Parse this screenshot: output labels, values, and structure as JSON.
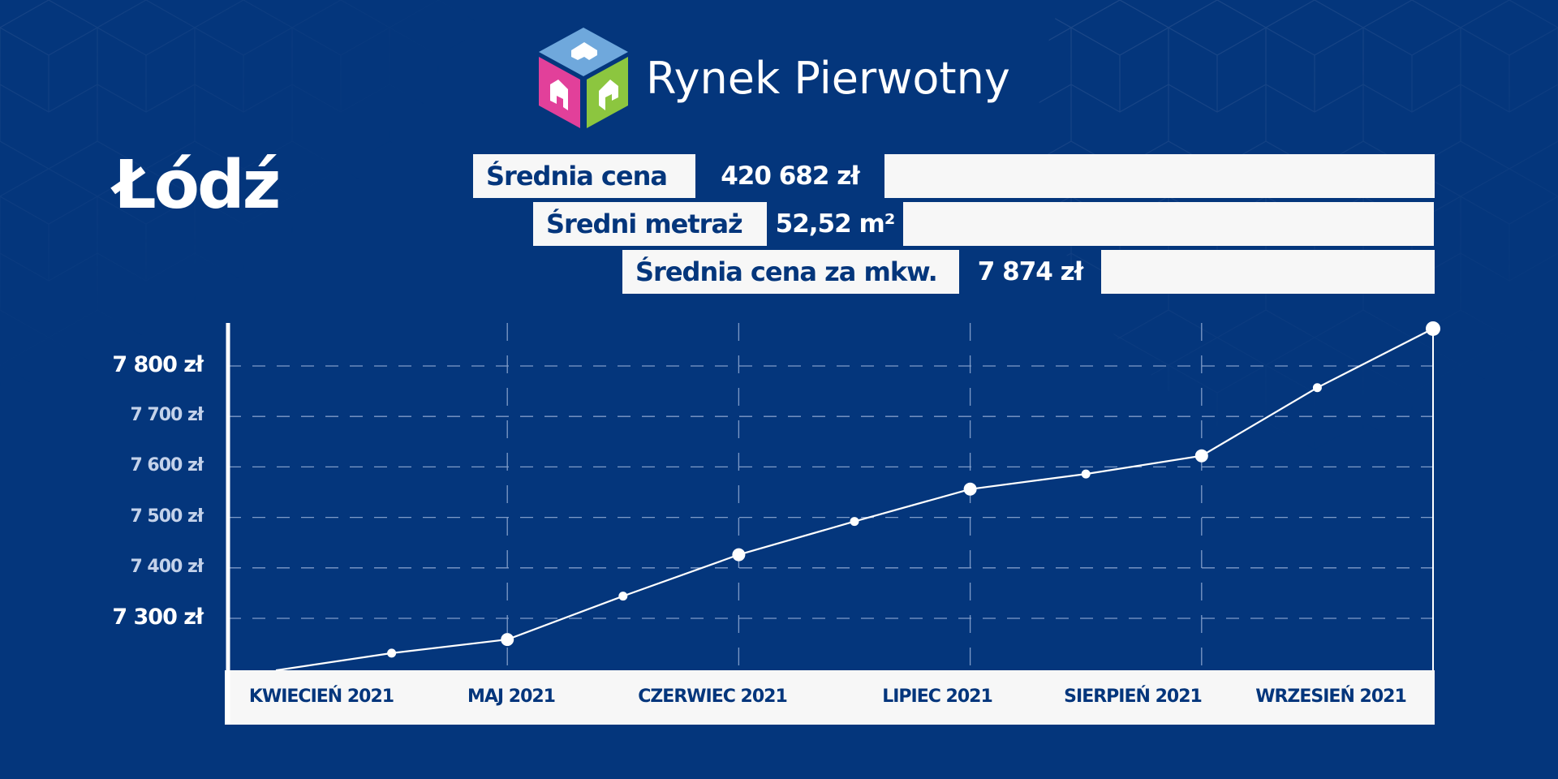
{
  "brand": {
    "name": "Rynek Pierwotny",
    "logo_icon": "house-cube-icon",
    "logo_colors": {
      "top": "#6fa8dc",
      "left": "#e2409a",
      "right": "#8cc63f"
    }
  },
  "city": "Łódź",
  "stats": [
    {
      "label": "Średnia cena",
      "value": "420 682 zł"
    },
    {
      "label": "Średni metraż",
      "value": "52,52 m²"
    },
    {
      "label": "Średnia cena za mkw.",
      "value": "7 874 zł"
    }
  ],
  "colors": {
    "background": "#04367c",
    "panel": "#f7f7f7",
    "text_dark": "#04367c",
    "line": "#ffffff",
    "grid": "#7f9bc8"
  },
  "chart_data": {
    "type": "line",
    "title": "Średnia cena za mkw. — Łódź",
    "xlabel": "",
    "ylabel": "",
    "ylim": [
      7190,
      7880
    ],
    "grid": {
      "horizontal": true,
      "vertical": true,
      "style": "dashed"
    },
    "yticks": [
      {
        "value": 7800,
        "label": "7 800 zł",
        "major": true
      },
      {
        "value": 7700,
        "label": "7 700 zł",
        "major": false
      },
      {
        "value": 7600,
        "label": "7 600 zł",
        "major": false
      },
      {
        "value": 7500,
        "label": "7 500 zł",
        "major": false
      },
      {
        "value": 7400,
        "label": "7 400 zł",
        "major": false
      },
      {
        "value": 7300,
        "label": "7 300 zł",
        "major": true
      }
    ],
    "categories": [
      "KWIECIEŃ 2021",
      "MAJ 2021",
      "CZERWIEC 2021",
      "LIPIEC 2021",
      "SIERPIEŃ 2021",
      "WRZESIEŃ 2021"
    ],
    "series": [
      {
        "name": "Średnia cena za mkw.",
        "points": [
          {
            "t": 0.0,
            "value": 7197,
            "marker": "none"
          },
          {
            "t": 0.5,
            "value": 7231,
            "marker": "small"
          },
          {
            "t": 1.0,
            "value": 7258,
            "marker": "large",
            "label": "MAJ 2021"
          },
          {
            "t": 1.5,
            "value": 7344,
            "marker": "small"
          },
          {
            "t": 2.0,
            "value": 7426,
            "marker": "large",
            "label": "CZERWIEC 2021"
          },
          {
            "t": 2.5,
            "value": 7492,
            "marker": "small"
          },
          {
            "t": 3.0,
            "value": 7556,
            "marker": "large",
            "label": "LIPIEC 2021"
          },
          {
            "t": 3.5,
            "value": 7586,
            "marker": "small"
          },
          {
            "t": 4.0,
            "value": 7622,
            "marker": "large",
            "label": "SIERPIEŃ 2021"
          },
          {
            "t": 4.5,
            "value": 7757,
            "marker": "small"
          },
          {
            "t": 5.0,
            "value": 7874,
            "marker": "large",
            "label": "WRZESIEŃ 2021"
          }
        ]
      }
    ],
    "legend": "none"
  }
}
